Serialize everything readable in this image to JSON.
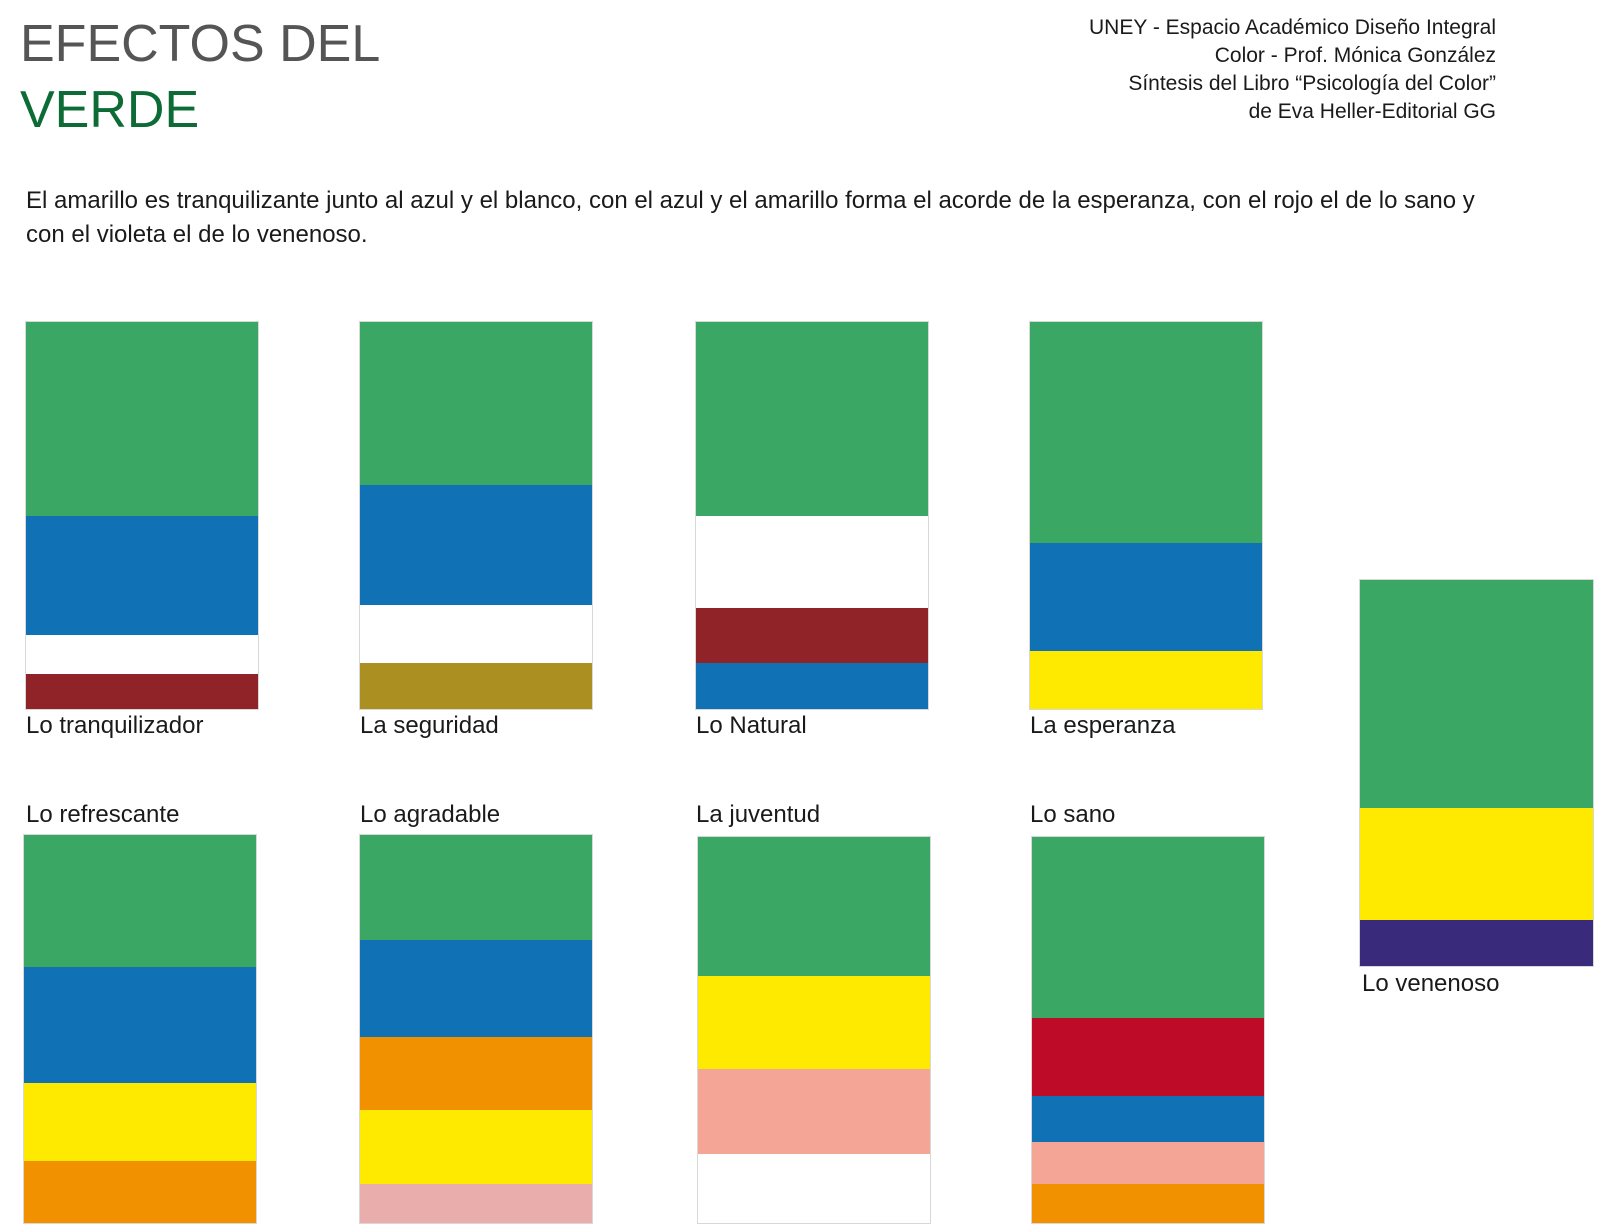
{
  "header": {
    "title_line1": "EFECTOS DEL",
    "title_line2": "VERDE",
    "credits": [
      "UNEY - Espacio Académico Diseño Integral",
      "Color -  Prof. Mónica González",
      "Síntesis del Libro “Psicología del Color”",
      "de Eva Heller-Editorial GG"
    ]
  },
  "intro_text": "El amarillo es tranquilizante junto al azul y el blanco, con el azul y el amarillo forma el acorde de la esperanza, con el rojo el de lo sano y con el violeta el de lo venenoso.",
  "colors": {
    "green": "#3aa864",
    "blue": "#1072b5",
    "white": "#ffffff",
    "maroon": "#8f2327",
    "olive": "#ab8f21",
    "yellow": "#fdea00",
    "orange": "#f29100",
    "salmon": "#f4a596",
    "pink": "#e9adac",
    "red": "#be0b28",
    "violet": "#3a2a7b",
    "title_gray": "#555555",
    "title_green": "#0d6b35"
  },
  "chords": [
    {
      "label": "Lo tranquilizador",
      "stripes": [
        {
          "color": "#3aa864",
          "share": 0.5
        },
        {
          "color": "#1072b5",
          "share": 0.31
        },
        {
          "color": "#ffffff",
          "share": 0.1
        },
        {
          "color": "#8f2327",
          "share": 0.09
        }
      ]
    },
    {
      "label": "La seguridad",
      "stripes": [
        {
          "color": "#3aa864",
          "share": 0.42
        },
        {
          "color": "#1072b5",
          "share": 0.31
        },
        {
          "color": "#ffffff",
          "share": 0.15
        },
        {
          "color": "#ab8f21",
          "share": 0.12
        }
      ]
    },
    {
      "label": "Lo Natural",
      "stripes": [
        {
          "color": "#3aa864",
          "share": 0.5
        },
        {
          "color": "#ffffff",
          "share": 0.24
        },
        {
          "color": "#8f2327",
          "share": 0.14
        },
        {
          "color": "#1072b5",
          "share": 0.12
        }
      ]
    },
    {
      "label": "La esperanza",
      "stripes": [
        {
          "color": "#3aa864",
          "share": 0.57
        },
        {
          "color": "#1072b5",
          "share": 0.28
        },
        {
          "color": "#fdea00",
          "share": 0.15
        }
      ]
    },
    {
      "label": "Lo refrescante",
      "stripes": [
        {
          "color": "#3aa864",
          "share": 0.34
        },
        {
          "color": "#1072b5",
          "share": 0.3
        },
        {
          "color": "#fdea00",
          "share": 0.2
        },
        {
          "color": "#f29100",
          "share": 0.16
        }
      ]
    },
    {
      "label": "Lo agradable",
      "stripes": [
        {
          "color": "#3aa864",
          "share": 0.27
        },
        {
          "color": "#1072b5",
          "share": 0.25
        },
        {
          "color": "#f29100",
          "share": 0.19
        },
        {
          "color": "#fdea00",
          "share": 0.19
        },
        {
          "color": "#e9adac",
          "share": 0.1
        }
      ]
    },
    {
      "label": "La juventud",
      "stripes": [
        {
          "color": "#3aa864",
          "share": 0.36
        },
        {
          "color": "#fdea00",
          "share": 0.24
        },
        {
          "color": "#f4a596",
          "share": 0.22
        },
        {
          "color": "#ffffff",
          "share": 0.18
        }
      ]
    },
    {
      "label": "Lo sano",
      "stripes": [
        {
          "color": "#3aa864",
          "share": 0.47
        },
        {
          "color": "#be0b28",
          "share": 0.2
        },
        {
          "color": "#1072b5",
          "share": 0.12
        },
        {
          "color": "#f4a596",
          "share": 0.11
        },
        {
          "color": "#f29100",
          "share": 0.1
        }
      ]
    },
    {
      "label": "Lo venenoso",
      "stripes": [
        {
          "color": "#3aa864",
          "share": 0.59
        },
        {
          "color": "#fdea00",
          "share": 0.29
        },
        {
          "color": "#3a2a7b",
          "share": 0.12
        }
      ]
    }
  ]
}
